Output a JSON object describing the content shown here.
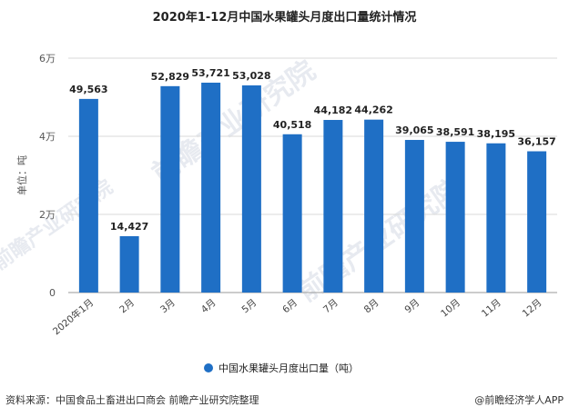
{
  "chart_data": {
    "type": "bar",
    "title": "2020年1-12月中国水果罐头月度出口量统计情况",
    "ylabel": "单位：吨",
    "categories": [
      "2020年1月",
      "2月",
      "3月",
      "4月",
      "5月",
      "6月",
      "7月",
      "8月",
      "9月",
      "10月",
      "11月",
      "12月"
    ],
    "series": [
      {
        "name": "中国水果罐头月度出口量（吨）",
        "values": [
          49563,
          14427,
          52829,
          53721,
          53028,
          40518,
          44182,
          44262,
          39065,
          38591,
          38195,
          36157
        ]
      }
    ],
    "value_labels": [
      "49,563",
      "14,427",
      "52,829",
      "53,721",
      "53,028",
      "40,518",
      "44,182",
      "44,262",
      "39,065",
      "38,591",
      "38,195",
      "36,157"
    ],
    "ylim": [
      0,
      60000
    ],
    "yticks": [
      0,
      20000,
      40000,
      60000
    ],
    "ytick_labels": [
      "0",
      "2万",
      "4万",
      "6万"
    ],
    "grid": true,
    "legend_position": "bottom-center",
    "bar_color": "#1f6fc5"
  },
  "footer": {
    "source": "资料来源：中国食品土畜进出口商会 前瞻产业研究院整理",
    "brand": "@前瞻经济学人APP"
  },
  "watermark_text": "前瞻产业研究院"
}
